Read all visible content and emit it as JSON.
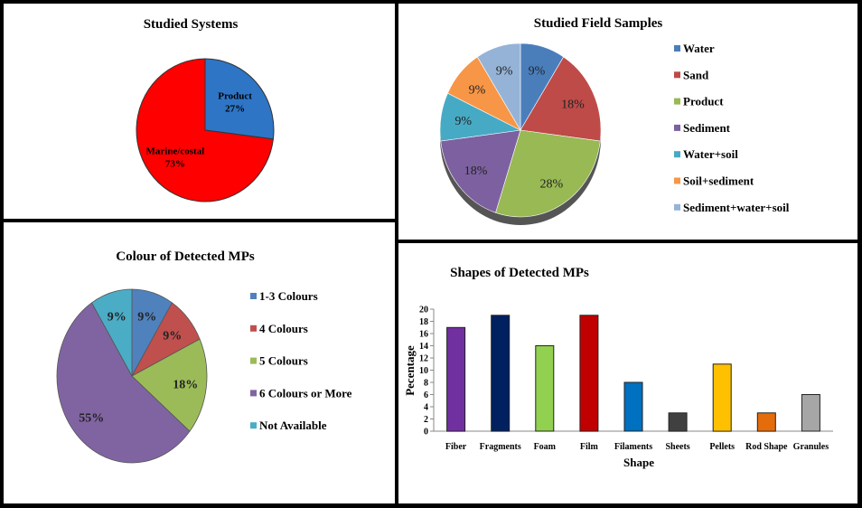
{
  "chart_data": [
    {
      "type": "pie",
      "title": "Studied Systems",
      "slices": [
        {
          "label": "Product",
          "value": 27,
          "text": "27%",
          "color": "#2e75c6"
        },
        {
          "label": "Marine/costal",
          "value": 73,
          "text": "73%",
          "color": "#ff0000"
        }
      ]
    },
    {
      "type": "pie",
      "title": "Studied Field Samples",
      "legend_position": "right",
      "slices": [
        {
          "label": "Water",
          "value": 9,
          "text": "9%",
          "color": "#4a7ebb"
        },
        {
          "label": "Sand",
          "value": 18,
          "text": "18%",
          "color": "#be4b48"
        },
        {
          "label": "Product",
          "value": 28,
          "text": "28%",
          "color": "#98b954"
        },
        {
          "label": "Sediment",
          "value": 18,
          "text": "18%",
          "color": "#7d60a0"
        },
        {
          "label": "Water+soil",
          "value": 9,
          "text": "9%",
          "color": "#46aac5"
        },
        {
          "label": "Soil+sediment",
          "value": 9,
          "text": "9%",
          "color": "#f79646"
        },
        {
          "label": "Sediment+water+soil",
          "value": 9,
          "text": "9%",
          "color": "#95b3d7"
        }
      ]
    },
    {
      "type": "pie",
      "title": "Colour of Detected MPs",
      "legend_position": "right",
      "slices": [
        {
          "label": "1-3 Colours",
          "value": 9,
          "text": "9%",
          "color": "#4f81bd"
        },
        {
          "label": "4 Colours",
          "value": 9,
          "text": "9%",
          "color": "#c0504d"
        },
        {
          "label": "5 Colours",
          "value": 18,
          "text": "18%",
          "color": "#9bbb59"
        },
        {
          "label": "6 Colours or More",
          "value": 55,
          "text": "55%",
          "color": "#8064a2"
        },
        {
          "label": "Not Available",
          "value": 9,
          "text": "9%",
          "color": "#4bacc6"
        }
      ]
    },
    {
      "type": "bar",
      "title": "Shapes of Detected MPs",
      "xlabel": "Shape",
      "ylabel": "Pecentage",
      "ylim": [
        0,
        20
      ],
      "yticks": [
        "0",
        "2",
        "4",
        "6",
        "8",
        "10",
        "12",
        "14",
        "16",
        "18",
        "20"
      ],
      "categories": [
        "Fiber",
        "Fragments",
        "Foam",
        "Film",
        "Filaments",
        "Sheets",
        "Pellets",
        "Rod Shape",
        "Granules"
      ],
      "values": [
        17,
        19,
        14,
        19,
        8,
        3,
        11,
        3,
        6
      ],
      "colors": [
        "#7030a0",
        "#002060",
        "#92d050",
        "#c00000",
        "#0070c0",
        "#404040",
        "#ffc000",
        "#e46c0a",
        "#a6a6a6"
      ]
    }
  ]
}
